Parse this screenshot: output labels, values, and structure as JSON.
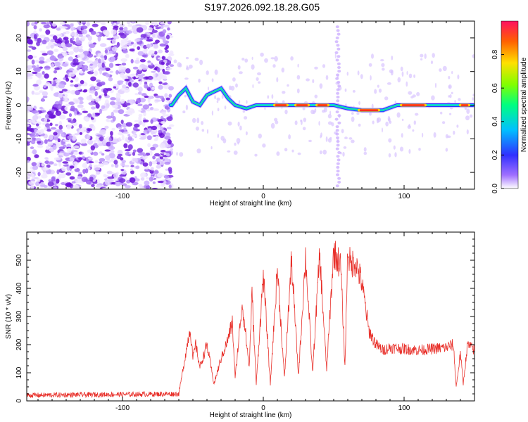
{
  "title": "S197.2026.092.18.28.G05",
  "colors": {
    "snr_line": "#e8302a",
    "heat_speckle": "#7a1fe0",
    "heat_high": "#ff2020"
  },
  "chart_data": [
    {
      "type": "heatmap",
      "name": "spectrogram",
      "xlabel": "Height of straight line (km)",
      "ylabel": "Frequency (Hz)",
      "xlim": [
        -168,
        150
      ],
      "ylim": [
        -25,
        25
      ],
      "xticks": [
        -100,
        0,
        100
      ],
      "yticks": [
        -20,
        -10,
        0,
        10,
        20
      ],
      "colorbar": {
        "label": "Normalized spectral amplitude",
        "range": [
          0,
          1
        ],
        "ticks": [
          0.0,
          0.2,
          0.4,
          0.6,
          0.8
        ]
      },
      "ridge": [
        {
          "x": -65,
          "f": 0
        },
        {
          "x": -60,
          "f": 3
        },
        {
          "x": -55,
          "f": 5
        },
        {
          "x": -50,
          "f": 1
        },
        {
          "x": -45,
          "f": 0
        },
        {
          "x": -40,
          "f": 3
        },
        {
          "x": -35,
          "f": 4
        },
        {
          "x": -30,
          "f": 5
        },
        {
          "x": -25,
          "f": 2
        },
        {
          "x": -20,
          "f": 0
        },
        {
          "x": -12,
          "f": -1
        },
        {
          "x": -5,
          "f": 0
        },
        {
          "x": 0,
          "f": 0
        },
        {
          "x": 10,
          "f": 0
        },
        {
          "x": 25,
          "f": 0
        },
        {
          "x": 40,
          "f": 0
        },
        {
          "x": 50,
          "f": 0
        },
        {
          "x": 60,
          "f": -1
        },
        {
          "x": 70,
          "f": -1.5
        },
        {
          "x": 85,
          "f": -1.5
        },
        {
          "x": 95,
          "f": 0
        },
        {
          "x": 110,
          "f": 0
        },
        {
          "x": 130,
          "f": 0
        },
        {
          "x": 148,
          "f": 0
        }
      ]
    },
    {
      "type": "line",
      "name": "snr",
      "xlabel": "Height of straight line (km)",
      "ylabel": "SNR (10 * v/v)",
      "xlim": [
        -168,
        150
      ],
      "ylim": [
        0,
        600
      ],
      "xticks": [
        -100,
        0,
        100
      ],
      "yticks": [
        0,
        100,
        200,
        300,
        400,
        500
      ],
      "series": [
        {
          "name": "SNR",
          "x": [
            -168,
            -60,
            -52,
            -50,
            -48,
            -45,
            -40,
            -35,
            -30,
            -25,
            -22,
            -20,
            -15,
            -10,
            -8,
            -5,
            0,
            5,
            10,
            15,
            20,
            25,
            30,
            35,
            40,
            45,
            50,
            55,
            58,
            60,
            62,
            65,
            70,
            75,
            80,
            85,
            90,
            100,
            110,
            120,
            130,
            135,
            137,
            140,
            142,
            145,
            150
          ],
          "y": [
            20,
            25,
            260,
            150,
            200,
            120,
            200,
            60,
            150,
            220,
            280,
            80,
            350,
            120,
            380,
            60,
            450,
            60,
            470,
            80,
            500,
            90,
            510,
            100,
            520,
            110,
            530,
            480,
            120,
            540,
            480,
            500,
            420,
            250,
            200,
            180,
            190,
            185,
            180,
            185,
            190,
            200,
            50,
            170,
            60,
            200,
            180
          ]
        }
      ]
    }
  ]
}
